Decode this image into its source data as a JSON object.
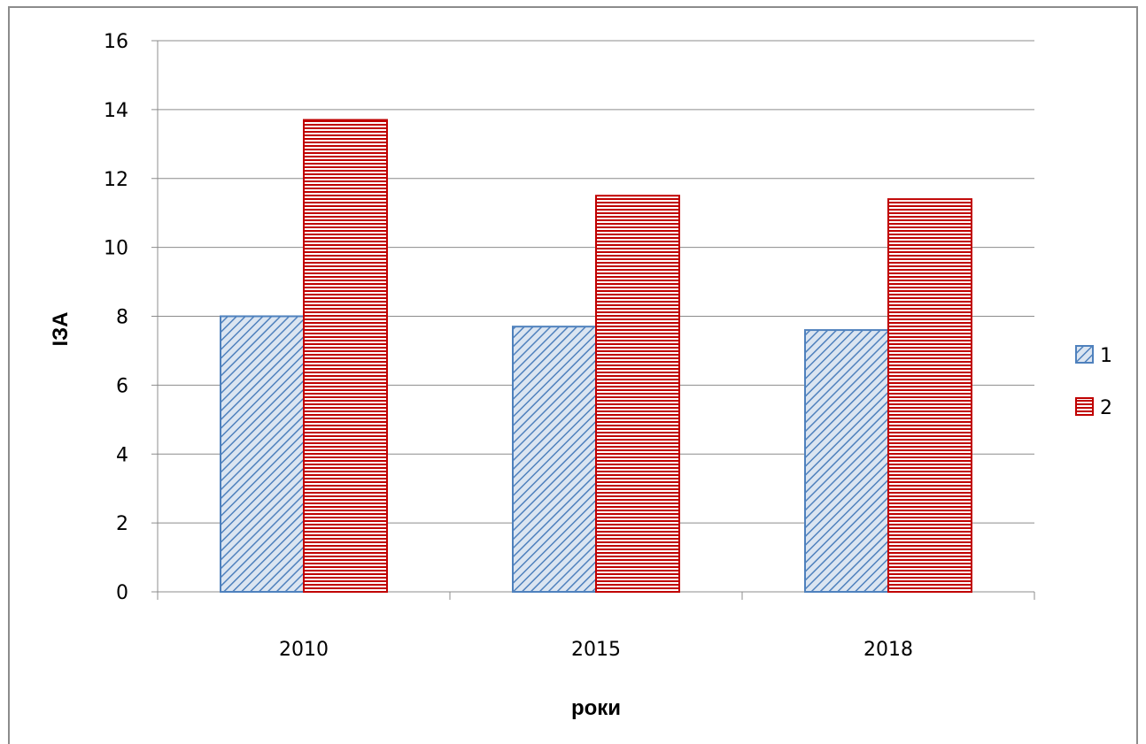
{
  "chart_data": {
    "type": "bar",
    "categories": [
      "2010",
      "2015",
      "2018"
    ],
    "series": [
      {
        "name": "1",
        "values": [
          8.0,
          7.7,
          7.6
        ],
        "color": "#4f81bd",
        "pattern": "diagonal"
      },
      {
        "name": "2",
        "values": [
          13.7,
          11.5,
          11.4
        ],
        "color": "#c00000",
        "pattern": "horizontal"
      }
    ],
    "title": "",
    "xlabel": "роки",
    "ylabel": "ІЗА",
    "ylim": [
      0,
      16
    ],
    "yticks": [
      "0",
      "2",
      "4",
      "6",
      "8",
      "10",
      "12",
      "14",
      "16"
    ],
    "grid": true,
    "legend_position": "right"
  }
}
